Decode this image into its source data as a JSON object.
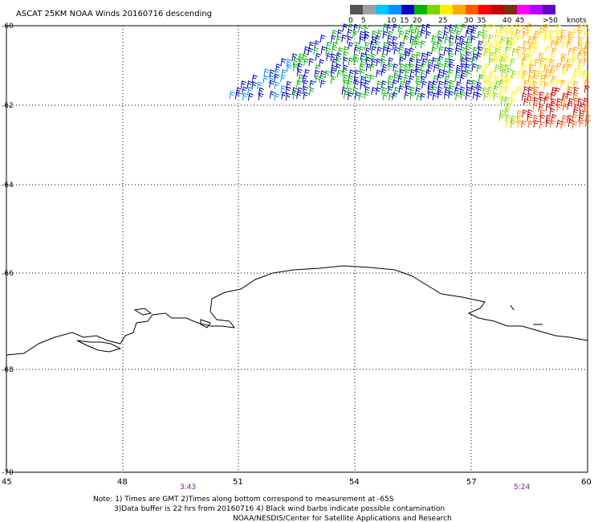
{
  "title": "ASCAT 25KM NOAA Winds 20160716 descending",
  "legend": {
    "unit": "knots",
    "bins": [
      {
        "label": "0",
        "color": "#555555"
      },
      {
        "label": "5",
        "color": "#a0a0a0"
      },
      {
        "label": "",
        "color": "#00c8ff"
      },
      {
        "label": "10",
        "color": "#0096ff"
      },
      {
        "label": "15",
        "color": "#0000c8"
      },
      {
        "label": "20",
        "color": "#00b400"
      },
      {
        "label": "",
        "color": "#7dd600"
      },
      {
        "label": "25",
        "color": "#ffee00"
      },
      {
        "label": "",
        "color": "#ffa800"
      },
      {
        "label": "30",
        "color": "#ff5a00"
      },
      {
        "label": "35",
        "color": "#ff0000"
      },
      {
        "label": "",
        "color": "#c80000"
      },
      {
        "label": "40",
        "color": "#7a3010"
      },
      {
        "label": "45",
        "color": "#ff00ff"
      },
      {
        "label": "",
        "color": "#b400ff"
      },
      {
        "label": ">50",
        "color": "#6400c8"
      }
    ]
  },
  "axes": {
    "lat_labels": [
      "-60",
      "-62",
      "-64",
      "-66",
      "-68",
      "-70"
    ],
    "lon_labels": [
      "45",
      "48",
      "51",
      "54",
      "57",
      "60"
    ]
  },
  "time_labels": [
    "3:43",
    "5:24"
  ],
  "notes": [
    "Note: 1) Times are GMT 2)Times along bottom correspond to measurement at -65S",
    "3)Data buffer is 22 hrs from 20160716 4) Black wind barbs indicate possible contamination",
    "NOAA/NESDIS/Center for Satellite Applications and Research"
  ]
}
